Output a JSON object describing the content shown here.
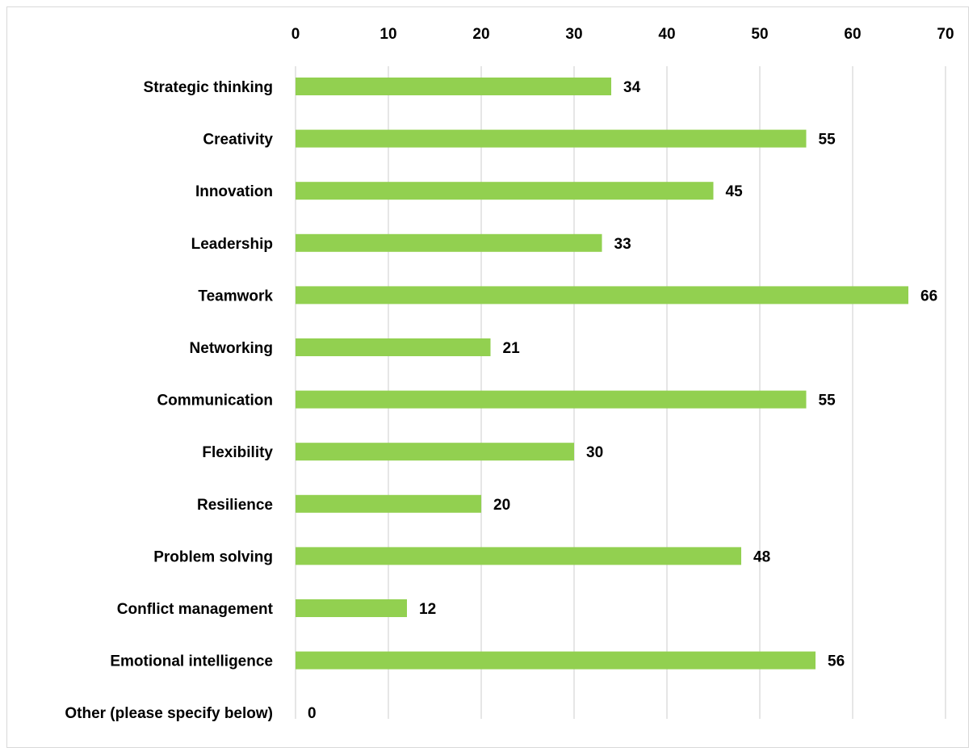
{
  "chart_data": {
    "type": "bar",
    "orientation": "horizontal",
    "categories": [
      "Strategic thinking",
      "Creativity",
      "Innovation",
      "Leadership",
      "Teamwork",
      "Networking",
      "Communication",
      "Flexibility",
      "Resilience",
      "Problem solving",
      "Conflict management",
      "Emotional intelligence",
      "Other (please specify below)"
    ],
    "values": [
      34,
      55,
      45,
      33,
      66,
      21,
      55,
      30,
      20,
      48,
      12,
      56,
      0
    ],
    "xlim": [
      0,
      70
    ],
    "xticks": [
      0,
      10,
      20,
      30,
      40,
      50,
      60,
      70
    ],
    "x_axis_position": "top",
    "grid": true,
    "data_labels": true,
    "bar_color": "#92d050",
    "title": "",
    "xlabel": "",
    "ylabel": ""
  }
}
